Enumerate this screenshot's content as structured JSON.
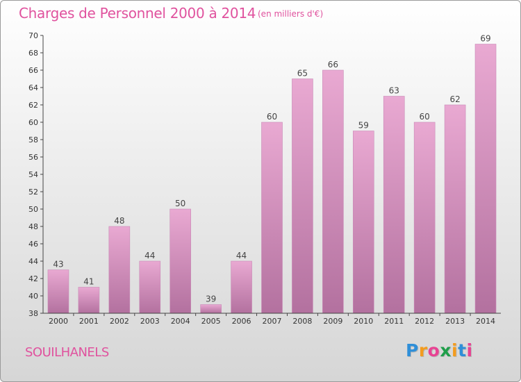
{
  "title": "Charges de Personnel 2000 à 2014",
  "subtitle": "(en milliers d'€)",
  "commune": "SOUILHANELS",
  "logo": {
    "text": "Proxiti",
    "letter_colors": [
      "#2f8fd8",
      "#f39c1f",
      "#e84393",
      "#1f9e4a",
      "#f39c1f",
      "#2f8fd8",
      "#e84393"
    ]
  },
  "colors": {
    "accent": "#e0529e",
    "bar_top": "#e9a9d2",
    "bar_bottom": "#b3719f",
    "axis": "#444444"
  },
  "chart_data": {
    "type": "bar",
    "categories": [
      "2000",
      "2001",
      "2002",
      "2003",
      "2004",
      "2005",
      "2006",
      "2007",
      "2008",
      "2009",
      "2010",
      "2011",
      "2012",
      "2013",
      "2014"
    ],
    "values": [
      43,
      41,
      48,
      44,
      50,
      39,
      44,
      60,
      65,
      66,
      59,
      63,
      60,
      62,
      69
    ],
    "ylim": [
      38,
      70
    ],
    "yticks": [
      38,
      40,
      42,
      44,
      46,
      48,
      50,
      52,
      54,
      56,
      58,
      60,
      62,
      64,
      66,
      68,
      70
    ],
    "grid": false,
    "data_labels": true
  }
}
